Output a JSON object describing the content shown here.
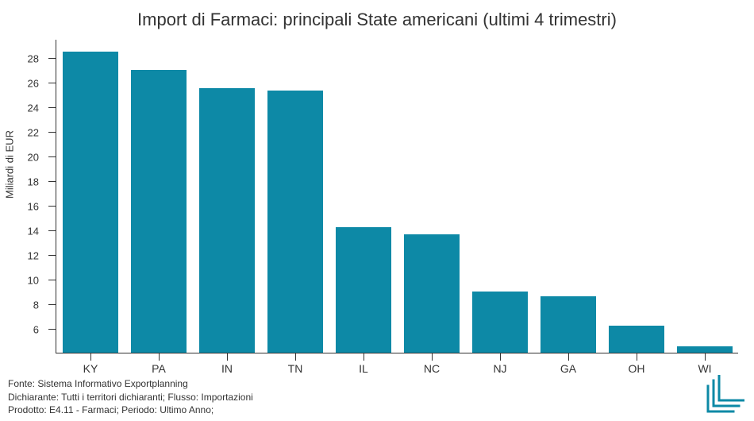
{
  "title": "Import di Farmaci: principali State americani (ultimi 4 trimestri)",
  "chart": {
    "type": "bar",
    "ylabel": "Miliardi di EUR",
    "categories": [
      "KY",
      "PA",
      "IN",
      "TN",
      "IL",
      "NC",
      "NJ",
      "GA",
      "OH",
      "WI"
    ],
    "values": [
      28.5,
      27.0,
      25.5,
      25.3,
      14.2,
      13.6,
      9.0,
      8.6,
      6.2,
      4.5
    ],
    "bar_color": "#0d89a6",
    "background_color": "#ffffff",
    "yticks": [
      6,
      8,
      10,
      12,
      14,
      16,
      18,
      20,
      22,
      24,
      26,
      28
    ],
    "ylim": [
      4.0,
      29.5
    ],
    "bar_width": 0.82,
    "axis_color": "#333333",
    "title_fontsize": 22,
    "label_fontsize": 13,
    "tick_fontsize": 13
  },
  "footer": {
    "line1": "Fonte: Sistema Informativo Exportplanning",
    "line2": "Dichiarante: Tutti i territori dichiaranti; Flusso: Importazioni",
    "line3": "Prodotto: E4.11 - Farmaci; Periodo: Ultimo Anno;"
  },
  "logo_color": "#0d89a6"
}
